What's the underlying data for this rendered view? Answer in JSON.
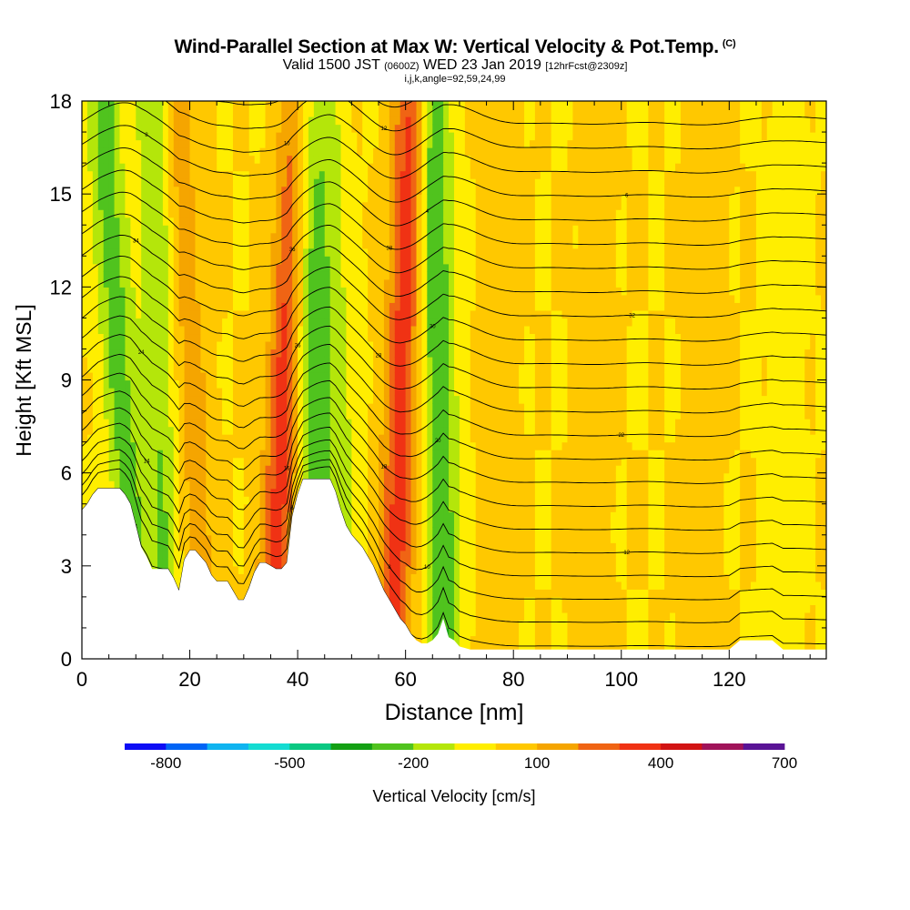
{
  "title": {
    "main": "Wind-Parallel Section at Max W: Vertical Velocity & Pot.Temp.",
    "copyright": "(C)",
    "valid_prefix": "Valid 1500 JST",
    "valid_utc": "(0600Z)",
    "valid_date": "WED 23 Jan 2019",
    "forecast": "[12hrFcst@2309z]",
    "indices": "i,j,k,angle=92,59,24,99"
  },
  "chart_data": {
    "type": "heatmap",
    "xlabel": "Distance [nm]",
    "ylabel": "Height [Kft MSL]",
    "xlim": [
      0,
      138
    ],
    "ylim": [
      0,
      18
    ],
    "x_ticks": [
      0,
      20,
      40,
      60,
      80,
      100,
      120
    ],
    "y_ticks": [
      0,
      3,
      6,
      9,
      12,
      15,
      18
    ],
    "x_tick_labels": [
      "0",
      "20",
      "40",
      "60",
      "80",
      "100",
      "120"
    ],
    "y_tick_labels": [
      "0",
      "3",
      "6",
      "9",
      "12",
      "15",
      "18"
    ],
    "background_w_cms": 0,
    "w_features": [
      {
        "x0": 15,
        "y0": 3,
        "x1": 13,
        "y1": 18,
        "w": -200
      },
      {
        "x0": 9,
        "y0": 4,
        "x1": 4,
        "y1": 17,
        "w": -250
      },
      {
        "x0": 22,
        "y0": 3,
        "x1": 18,
        "y1": 17,
        "w": 150
      },
      {
        "x0": 36,
        "y0": 3,
        "x1": 40,
        "y1": 18,
        "w": 350
      },
      {
        "x0": 43,
        "y0": 6,
        "x1": 41,
        "y1": 18,
        "w": -250
      },
      {
        "x0": 48,
        "y0": 6,
        "x1": 45,
        "y1": 18,
        "w": -150
      },
      {
        "x0": 58,
        "y0": 2,
        "x1": 61,
        "y1": 18,
        "w": 350
      },
      {
        "x0": 67,
        "y0": 2,
        "x1": 65,
        "y1": 18,
        "w": -300
      },
      {
        "x0": 77,
        "y0": 1,
        "x1": 78,
        "y1": 18,
        "w": 50
      },
      {
        "x0": 94,
        "y0": 1,
        "x1": 96,
        "y1": 17,
        "w": 40
      },
      {
        "x0": 114,
        "y0": 1,
        "x1": 116,
        "y1": 16,
        "w": 50
      },
      {
        "x0": 130,
        "y0": 1,
        "x1": 131,
        "y1": 16,
        "w": -40
      }
    ],
    "terrain": {
      "x": [
        0,
        1,
        2,
        3,
        4,
        5,
        6,
        7,
        8,
        9,
        10,
        11,
        12,
        13,
        14,
        15,
        16,
        17,
        18,
        19,
        20,
        21,
        22,
        23,
        24,
        25,
        26,
        27,
        28,
        29,
        30,
        31,
        32,
        33,
        34,
        35,
        36,
        37,
        38,
        39,
        40,
        41,
        42,
        43,
        44,
        45,
        46,
        47,
        48,
        49,
        50,
        51,
        52,
        53,
        54,
        55,
        56,
        57,
        58,
        59,
        60,
        61,
        62,
        63,
        64,
        65,
        66,
        67,
        68,
        69,
        70,
        72,
        75,
        80,
        85,
        90,
        95,
        100,
        105,
        110,
        115,
        120,
        122,
        125,
        128,
        130,
        135,
        138
      ],
      "height_kft": [
        4.8,
        5.0,
        5.3,
        5.5,
        5.5,
        5.5,
        5.5,
        5.5,
        5.3,
        5.0,
        4.3,
        3.6,
        3.3,
        2.9,
        2.9,
        2.9,
        2.9,
        2.6,
        2.2,
        3.2,
        3.5,
        3.5,
        3.3,
        3.1,
        2.7,
        2.5,
        2.5,
        2.5,
        2.2,
        1.9,
        1.9,
        2.3,
        2.8,
        3.1,
        3.1,
        3.0,
        2.9,
        2.9,
        3.1,
        4.6,
        5.3,
        5.8,
        5.8,
        5.8,
        5.8,
        5.8,
        5.8,
        5.4,
        4.8,
        4.3,
        4.0,
        3.8,
        3.6,
        3.3,
        3.0,
        2.6,
        2.2,
        1.9,
        1.6,
        1.3,
        1.1,
        0.8,
        0.6,
        0.5,
        0.5,
        0.6,
        0.8,
        1.3,
        0.7,
        0.6,
        0.4,
        0.3,
        0.3,
        0.3,
        0.3,
        0.3,
        0.3,
        0.3,
        0.3,
        0.3,
        0.3,
        0.3,
        0.6,
        0.6,
        0.6,
        0.3,
        0.3,
        0.3
      ]
    },
    "theta_contour_labels": [
      "4",
      "6",
      "8",
      "10",
      "12",
      "14",
      "16",
      "18",
      "20",
      "22",
      "24",
      "26",
      "28",
      "30",
      "32",
      "34",
      "36",
      "38"
    ],
    "colorbar": {
      "label": "Vertical Velocity [cm/s]",
      "colors": [
        "#0d0df5",
        "#0064f5",
        "#0fb4f0",
        "#14dcd2",
        "#0ac882",
        "#14a014",
        "#50c31e",
        "#b4e60a",
        "#ffee00",
        "#ffc800",
        "#f5a500",
        "#f06414",
        "#f03214",
        "#d21414",
        "#a0145a",
        "#5a1496"
      ],
      "tick_labels": [
        "-800",
        "-500",
        "-200",
        "100",
        "400",
        "700"
      ]
    }
  }
}
